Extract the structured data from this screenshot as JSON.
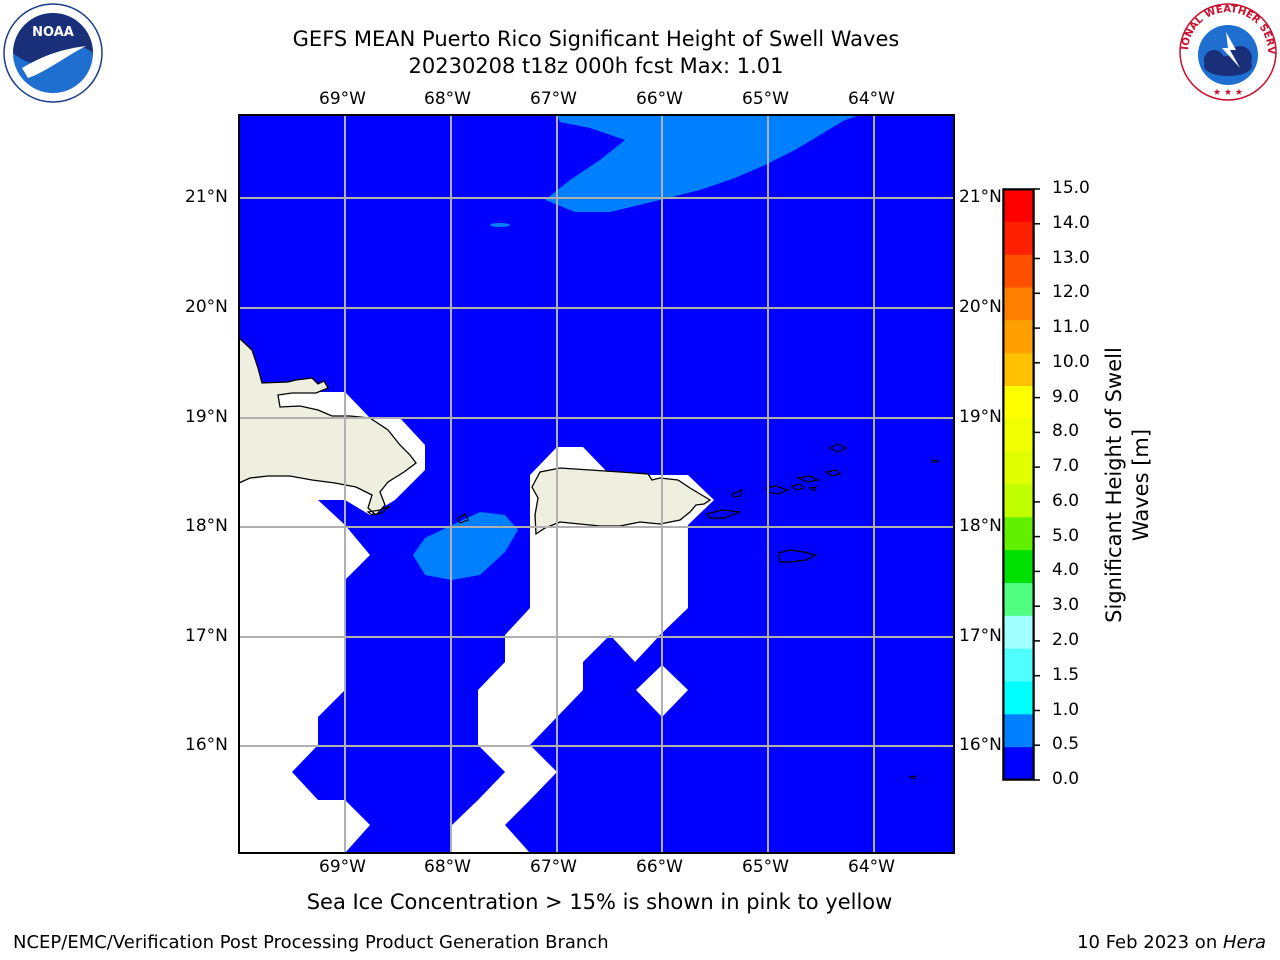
{
  "header": {
    "title_line1": "GEFS MEAN Puerto Rico Significant Height of Swell Waves",
    "title_line2": "20230208 t18z 000h fcst   Max: 1.01"
  },
  "logos": {
    "left": "noaa-logo",
    "left_text": "NOAA",
    "right": "nws-logo",
    "right_text": "NATIONAL WEATHER SERVICE"
  },
  "map": {
    "lon_labels": [
      "69°W",
      "68°W",
      "67°W",
      "66°W",
      "65°W",
      "64°W"
    ],
    "lat_labels": [
      "21°N",
      "20°N",
      "19°N",
      "18°N",
      "17°N",
      "16°N"
    ],
    "colors": {
      "ocean_0": "#0000ff",
      "ocean_05": "#0080ff",
      "land": "#efefdf",
      "masked": "#ffffff",
      "grid": "#b0b0b0"
    }
  },
  "colorbar": {
    "label": "Significant Height of Swell Waves [m]",
    "ticks": [
      "15.0",
      "14.0",
      "13.0",
      "12.0",
      "11.0",
      "10.0",
      "9.0",
      "8.0",
      "7.0",
      "6.0",
      "5.0",
      "4.0",
      "3.0",
      "2.0",
      "1.5",
      "1.0",
      "0.5",
      "0.0"
    ],
    "colors": [
      "#ff0000",
      "#ff2000",
      "#ff5000",
      "#ff8000",
      "#ffa000",
      "#ffc000",
      "#ffff00",
      "#f0ff00",
      "#e0ff00",
      "#c0ff00",
      "#60f000",
      "#00e000",
      "#50ff80",
      "#a0ffff",
      "#50ffff",
      "#00ffff",
      "#0080ff",
      "#0000ff"
    ]
  },
  "note": "Sea Ice Concentration > 15% is shown in pink to yellow",
  "footer": {
    "left": "NCEP/EMC/Verification Post Processing Product Generation Branch",
    "date": "10 Feb 2023 on ",
    "machine": "Hera"
  }
}
